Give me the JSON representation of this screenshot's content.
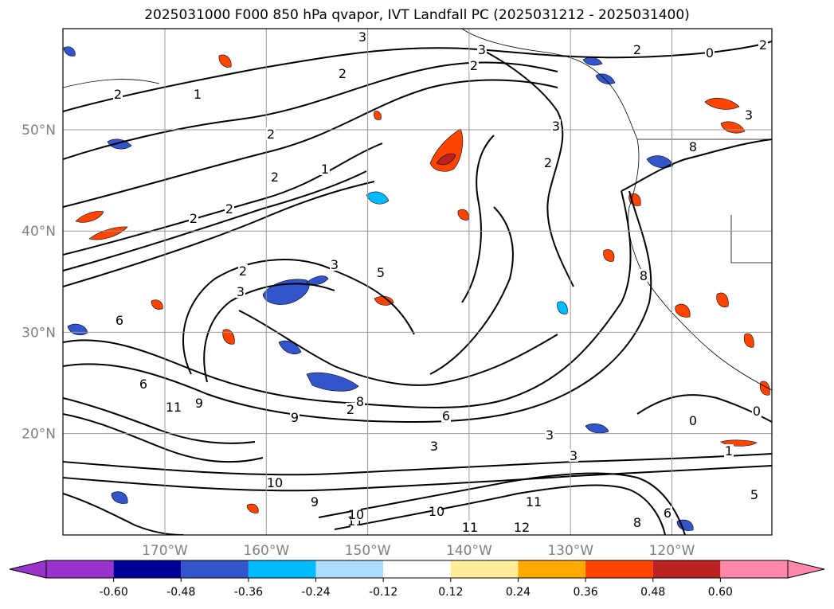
{
  "title": "2025031000 F000 850 hPa qvapor, IVT Landfall PC (2025031212 - 2025031400)",
  "map": {
    "lat_ticks": [
      {
        "value": 50,
        "label": "50°N"
      },
      {
        "value": 40,
        "label": "40°N"
      },
      {
        "value": 30,
        "label": "30°N"
      },
      {
        "value": 20,
        "label": "20°N"
      }
    ],
    "lon_ticks": [
      {
        "value": -170,
        "label": "170°W"
      },
      {
        "value": -160,
        "label": "160°W"
      },
      {
        "value": -150,
        "label": "150°W"
      },
      {
        "value": -140,
        "label": "140°W"
      },
      {
        "value": -130,
        "label": "130°W"
      },
      {
        "value": -120,
        "label": "120°W"
      }
    ],
    "contour_labels": [
      "3",
      "3",
      "2",
      "2",
      "2",
      "2",
      "1",
      "0",
      "2",
      "3",
      "2",
      "2",
      "1",
      "2",
      "2",
      "2",
      "2",
      "3",
      "3",
      "2",
      "5",
      "3",
      "8",
      "8",
      "6",
      "6",
      "9",
      "9",
      "8",
      "6",
      "3",
      "3",
      "3",
      "1",
      "0",
      "0",
      "10",
      "11",
      "11",
      "12",
      "10",
      "11",
      "5",
      "6",
      "8",
      "10",
      "11",
      "9"
    ]
  },
  "colorbar": {
    "ticks": [
      "-0.60",
      "-0.48",
      "-0.36",
      "-0.24",
      "-0.12",
      "0.12",
      "0.24",
      "0.36",
      "0.48",
      "0.60"
    ],
    "under_color": "#9933cc",
    "over_color": "#ff88aa",
    "colors": [
      "#000099",
      "#3355cc",
      "#00bbff",
      "#aaddff",
      "#ffffff",
      "#ffee99",
      "#ffaa00",
      "#ff4400",
      "#bb2222"
    ]
  }
}
